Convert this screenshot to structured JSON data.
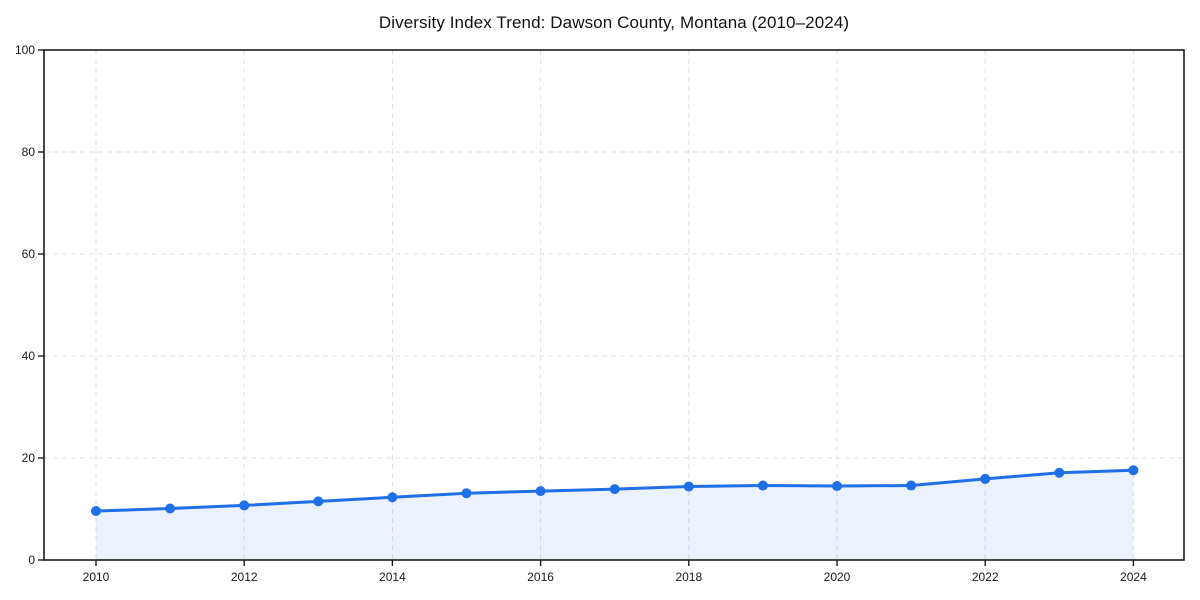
{
  "chart_data": {
    "type": "line",
    "title": "Diversity Index Trend: Dawson County, Montana (2010–2024)",
    "x": [
      2010,
      2011,
      2012,
      2013,
      2014,
      2015,
      2016,
      2017,
      2018,
      2019,
      2020,
      2021,
      2022,
      2023,
      2024
    ],
    "series": [
      {
        "name": "Diversity Index",
        "values": [
          9.6,
          10.1,
          10.7,
          11.5,
          12.3,
          13.1,
          13.5,
          13.9,
          14.4,
          14.6,
          14.5,
          14.6,
          15.9,
          17.1,
          17.6
        ]
      }
    ],
    "xlabel": "",
    "ylabel": "",
    "ylim": [
      0,
      100
    ],
    "yticks": [
      0,
      20,
      40,
      60,
      80,
      100
    ],
    "xticks": [
      2010,
      2012,
      2014,
      2016,
      2018,
      2020,
      2022,
      2024
    ],
    "grid": true,
    "grid_style": "dashed",
    "legend": "none",
    "area_fill": true,
    "marker": "circle",
    "colors": {
      "line": "#1f6fe6",
      "marker": "#1f6fe6",
      "area_fill_rgba": "rgba(36, 110, 230, 0.09)",
      "grid": "#dfdfdf",
      "spine": "#1a1a1a",
      "tick_label": "#1a1a1a",
      "title": "#111111",
      "background": "#ffffff"
    }
  }
}
